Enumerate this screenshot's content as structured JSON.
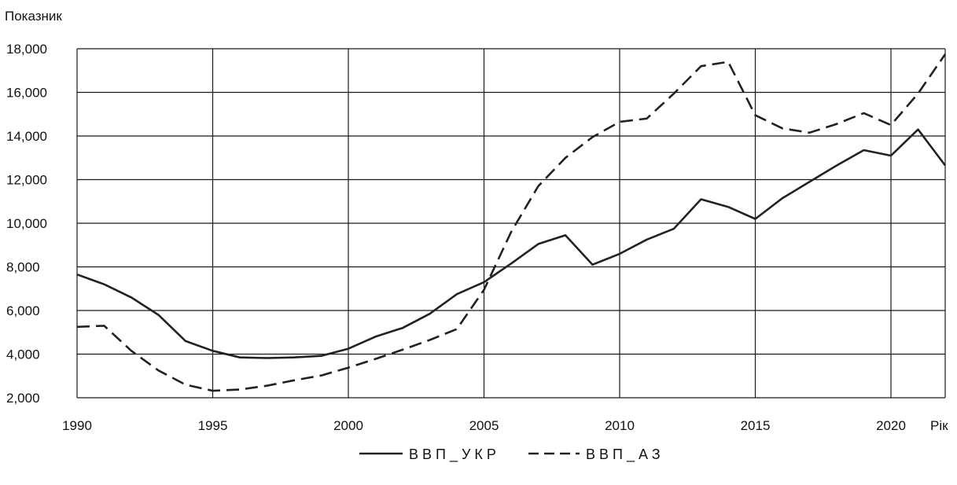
{
  "chart_data": {
    "type": "line",
    "title": "",
    "ylabel": "Показник",
    "xlabel": "Рік",
    "xlim": [
      1990,
      2022
    ],
    "ylim": [
      2000,
      18000
    ],
    "x_ticks": [
      "1990",
      "1995",
      "2000",
      "2005",
      "2010",
      "2015",
      "2020"
    ],
    "y_ticks": [
      "2,000",
      "4,000",
      "6,000",
      "8,000",
      "10,000",
      "12,000",
      "14,000",
      "16,000",
      "18,000"
    ],
    "grid": true,
    "legend_position": "bottom-center",
    "x": [
      1990,
      1991,
      1992,
      1993,
      1994,
      1995,
      1996,
      1997,
      1998,
      1999,
      2000,
      2001,
      2002,
      2003,
      2004,
      2005,
      2006,
      2007,
      2008,
      2009,
      2010,
      2011,
      2012,
      2013,
      2014,
      2015,
      2016,
      2017,
      2018,
      2019,
      2020,
      2021,
      2022
    ],
    "series": [
      {
        "name": "ВВП_УКР",
        "style": "solid",
        "color": "#222222",
        "values": [
          7650,
          7200,
          6600,
          5800,
          4600,
          4150,
          3850,
          3820,
          3850,
          3920,
          4250,
          4800,
          5200,
          5850,
          6750,
          7300,
          8150,
          9050,
          9450,
          8100,
          8600,
          9250,
          9750,
          11100,
          10750,
          10200,
          11150,
          11900,
          12650,
          13350,
          13100,
          14300,
          12650
        ]
      },
      {
        "name": "ВВП_АЗ",
        "style": "dashed",
        "color": "#222222",
        "values": [
          5250,
          5300,
          4150,
          3250,
          2600,
          2320,
          2380,
          2550,
          2800,
          3020,
          3380,
          3780,
          4200,
          4650,
          5150,
          6950,
          9600,
          11700,
          13000,
          13950,
          14650,
          14800,
          15950,
          17200,
          17400,
          14950,
          14350,
          14150,
          14550,
          15050,
          14500,
          15950,
          17750
        ]
      }
    ]
  }
}
